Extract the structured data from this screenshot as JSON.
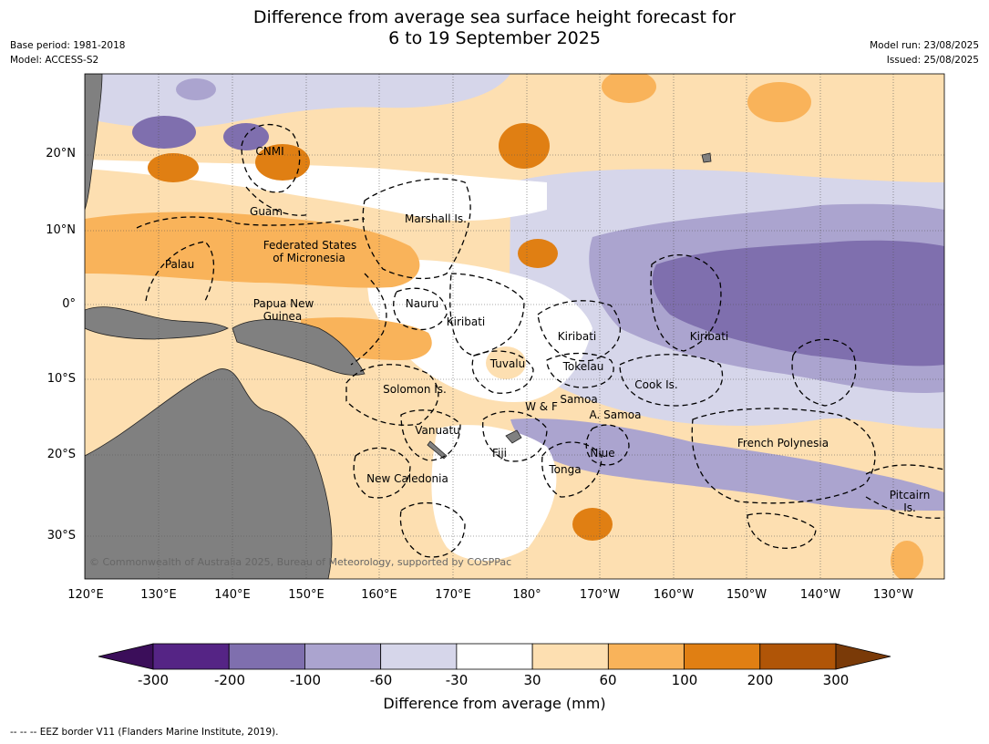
{
  "title_line1": "Difference from average sea surface height forecast for",
  "title_line2": "6 to 19 September 2025",
  "base_period": "Base period: 1981-2018",
  "model": "Model: ACCESS-S2",
  "model_run": "Model run: 23/08/2025",
  "issued": "Issued: 25/08/2025",
  "copyright": "© Commonwealth of Australia 2025, Bureau of Meteorology, supported by COSPPac",
  "lat_labels": [
    "20°N",
    "10°N",
    "0°",
    "10°S",
    "20°S",
    "30°S"
  ],
  "lon_labels": [
    "120°E",
    "130°E",
    "140°E",
    "150°E",
    "160°E",
    "170°E",
    "180°",
    "170°W",
    "160°W",
    "150°W",
    "140°W",
    "130°W"
  ],
  "places": {
    "cnmi": "CNMI",
    "guam": "Guam",
    "marshall": "Marshall Is.",
    "fsm_line1": "Federated States",
    "fsm_line2": "of Micronesia",
    "palau": "Palau",
    "png_line1": "Papua New",
    "png_line2": "Guinea",
    "nauru": "Nauru",
    "kiribati_west": "Kiribati",
    "kiribati_central": "Kiribati",
    "kiribati_east": "Kiribati",
    "tuvalu": "Tuvalu",
    "tokelau": "Tokelau",
    "cook": "Cook Is.",
    "solomon": "Solomon Is.",
    "samoa": "Samoa",
    "wf": "W & F",
    "asamoa": "A. Samoa",
    "vanuatu": "Vanuatu",
    "fiji": "Fiji",
    "niue": "Niue",
    "tonga": "Tonga",
    "french_polynesia": "French Polynesia",
    "newcal": "New Caledonia",
    "pitcairn_line1": "Pitcairn",
    "pitcairn_line2": "Is."
  },
  "colorbar": {
    "title": "Difference from average (mm)",
    "ticks": [
      "-300",
      "-200",
      "-100",
      "-60",
      "-30",
      "30",
      "60",
      "100",
      "200",
      "300"
    ],
    "colors": [
      "#3b0e5a",
      "#552485",
      "#7f6fae",
      "#aba4cf",
      "#d6d6ea",
      "#ffffff",
      "#fddfb1",
      "#f9b35a",
      "#e07f13",
      "#b05507",
      "#7a3a08"
    ]
  },
  "footnote": "--  --  -- EEZ border V11 (Flanders Marine Institute, 2019)."
}
